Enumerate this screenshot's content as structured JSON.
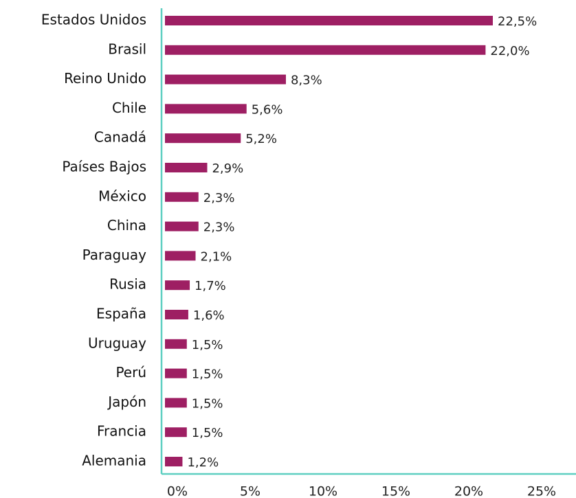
{
  "chart_data": {
    "type": "bar",
    "orientation": "horizontal",
    "categories": [
      "Estados Unidos",
      "Brasil",
      "Reino Unido",
      "Chile",
      "Canadá",
      "Países Bajos",
      "México",
      "China",
      "Paraguay",
      "Rusia",
      "España",
      "Uruguay",
      "Perú",
      "Japón",
      "Francia",
      "Alemania"
    ],
    "values": [
      22.5,
      22.0,
      8.3,
      5.6,
      5.2,
      2.9,
      2.3,
      2.3,
      2.1,
      1.7,
      1.6,
      1.5,
      1.5,
      1.5,
      1.5,
      1.2
    ],
    "value_labels": [
      "22,5%",
      "22,0%",
      "8,3%",
      "5,6%",
      "5,2%",
      "2,9%",
      "2,3%",
      "2,3%",
      "2,1%",
      "1,7%",
      "1,6%",
      "1,5%",
      "1,5%",
      "1,5%",
      "1,5%",
      "1,2%"
    ],
    "color": "#9e1f63",
    "axis_color": "#5ecfc1",
    "xlim": [
      0,
      25
    ],
    "xticks": [
      {
        "value": 0,
        "label": "0%"
      },
      {
        "value": 5,
        "label": "5%"
      },
      {
        "value": 10,
        "label": "10%"
      },
      {
        "value": 15,
        "label": "15%"
      },
      {
        "value": 20,
        "label": "20%"
      },
      {
        "value": 25,
        "label": "25%"
      }
    ]
  }
}
